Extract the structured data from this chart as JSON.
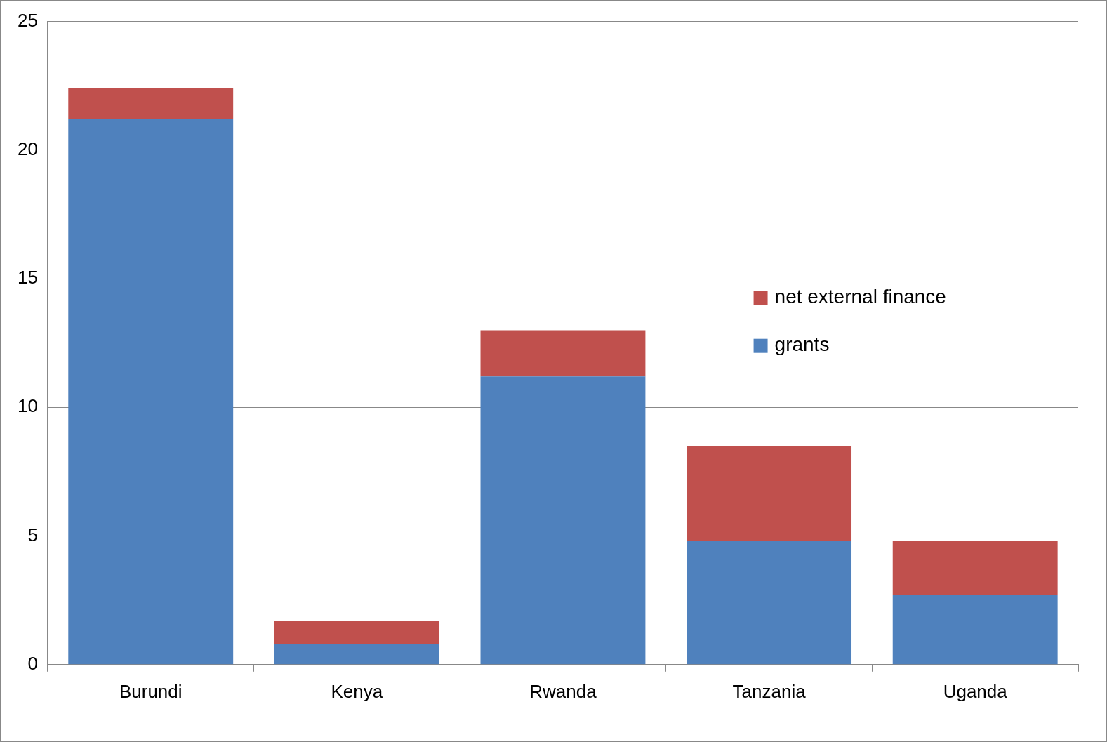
{
  "chart_data": {
    "type": "bar",
    "stacked": true,
    "categories": [
      "Burundi",
      "Kenya",
      "Rwanda",
      "Tanzania",
      "Uganda"
    ],
    "series": [
      {
        "name": "grants",
        "color": "#4f81bd",
        "values": [
          21.2,
          0.8,
          11.2,
          4.8,
          2.7
        ]
      },
      {
        "name": "net external finance",
        "color": "#c0504d",
        "values": [
          1.2,
          0.9,
          1.8,
          3.7,
          2.1
        ]
      }
    ],
    "ylim": [
      0,
      25
    ],
    "yticks": [
      0,
      5,
      10,
      15,
      20,
      25
    ],
    "grid": "y",
    "legend": "right"
  }
}
